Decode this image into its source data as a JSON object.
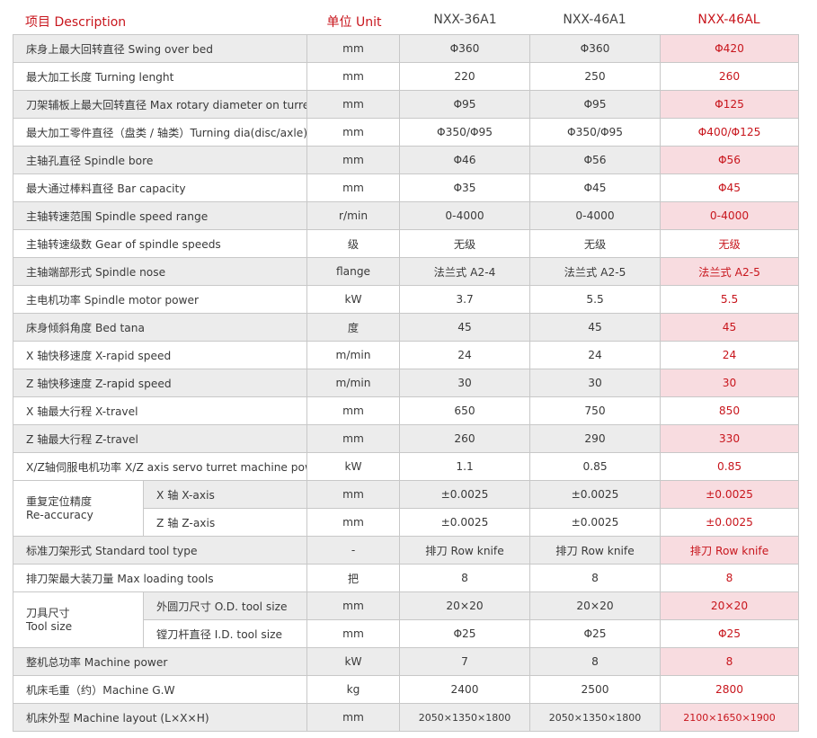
{
  "header": {
    "description": "项目 Description",
    "unit": "单位 Unit",
    "model1": "NXX-36A1",
    "model2": "NXX-46A1",
    "model3": "NXX-46AL"
  },
  "rows": [
    {
      "label": "床身上最大回转直径 Swing over bed",
      "unit": "mm",
      "v1": "Φ360",
      "v2": "Φ360",
      "v3": "Φ420"
    },
    {
      "label": "最大加工长度 Turning lenght",
      "unit": "mm",
      "v1": "220",
      "v2": "250",
      "v3": "260"
    },
    {
      "label": "刀架辅板上最大回转直径 Max rotary  diameter on turret",
      "unit": "mm",
      "v1": "Φ95",
      "v2": "Φ95",
      "v3": "Φ125"
    },
    {
      "label": "最大加工零件直径（盘类 / 轴类）Turning dia(disc/axle)",
      "unit": "mm",
      "v1": "Φ350/Φ95",
      "v2": "Φ350/Φ95",
      "v3": "Φ400/Φ125"
    },
    {
      "label": "主轴孔直径 Spindle bore",
      "unit": "mm",
      "v1": "Φ46",
      "v2": "Φ56",
      "v3": "Φ56"
    },
    {
      "label": "最大通过棒料直径 Bar capacity",
      "unit": "mm",
      "v1": "Φ35",
      "v2": "Φ45",
      "v3": "Φ45"
    },
    {
      "label": "主轴转速范围 Spindle speed range",
      "unit": "r/min",
      "v1": "0-4000",
      "v2": "0-4000",
      "v3": "0-4000"
    },
    {
      "label": "主轴转速级数 Gear of spindle speeds",
      "unit": "级",
      "v1": "无级",
      "v2": "无级",
      "v3": "无级"
    },
    {
      "label": "主轴端部形式 Spindle nose",
      "unit": "flange",
      "v1": "法兰式 A2-4",
      "v2": "法兰式 A2-5",
      "v3": "法兰式 A2-5"
    },
    {
      "label": "主电机功率 Spindle motor power",
      "unit": "kW",
      "v1": "3.7",
      "v2": "5.5",
      "v3": "5.5"
    },
    {
      "label": "床身倾斜角度 Bed tana",
      "unit": "度",
      "v1": "45",
      "v2": "45",
      "v3": "45"
    },
    {
      "label": "X 轴快移速度 X-rapid speed",
      "unit": "m/min",
      "v1": "24",
      "v2": "24",
      "v3": "24"
    },
    {
      "label": "Z 轴快移速度 Z-rapid speed",
      "unit": "m/min",
      "v1": "30",
      "v2": "30",
      "v3": "30"
    },
    {
      "label": "X 轴最大行程 X-travel",
      "unit": "mm",
      "v1": "650",
      "v2": "750",
      "v3": "850"
    },
    {
      "label": "Z 轴最大行程 Z-travel",
      "unit": "mm",
      "v1": "260",
      "v2": "290",
      "v3": "330"
    },
    {
      "label": "X/Z轴伺服电机功率 X/Z axis servo turret machine power",
      "unit": "kW",
      "v1": "1.1",
      "v2": "0.85",
      "v3": "0.85"
    }
  ],
  "accuracy": {
    "group_line1": "重复定位精度",
    "group_line2": "Re-accuracy",
    "rows": [
      {
        "label": "X 轴 X-axis",
        "unit": "mm",
        "v1": "±0.0025",
        "v2": "±0.0025",
        "v3": "±0.0025"
      },
      {
        "label": "Z 轴 Z-axis",
        "unit": "mm",
        "v1": "±0.0025",
        "v2": "±0.0025",
        "v3": "±0.0025"
      }
    ]
  },
  "rows2": [
    {
      "label": "标准刀架形式 Standard tool type",
      "unit": "-",
      "v1": "排刀 Row knife",
      "v2": "排刀 Row knife",
      "v3": "排刀 Row knife"
    },
    {
      "label": "排刀架最大装刀量 Max loading tools",
      "unit": "把",
      "v1": "8",
      "v2": "8",
      "v3": "8"
    }
  ],
  "toolsize": {
    "group_line1": "刀具尺寸",
    "group_line2": "Tool size",
    "rows": [
      {
        "label": "外圆刀尺寸 O.D. tool size",
        "unit": "mm",
        "v1": "20×20",
        "v2": "20×20",
        "v3": "20×20"
      },
      {
        "label": "镗刀杆直径 I.D. tool size",
        "unit": "mm",
        "v1": "Φ25",
        "v2": "Φ25",
        "v3": "Φ25"
      }
    ]
  },
  "rows3": [
    {
      "label": "整机总功率 Machine power",
      "unit": "kW",
      "v1": "7",
      "v2": "8",
      "v3": "8"
    },
    {
      "label": "机床毛重（约）Machine G.W",
      "unit": "kg",
      "v1": "2400",
      "v2": "2500",
      "v3": "2800"
    },
    {
      "label": "机床外型 Machine layout (L×X×H)",
      "unit": "mm",
      "v1": "2050×1350×1800",
      "v2": "2050×1350×1800",
      "v3": "2100×1650×1900"
    }
  ]
}
